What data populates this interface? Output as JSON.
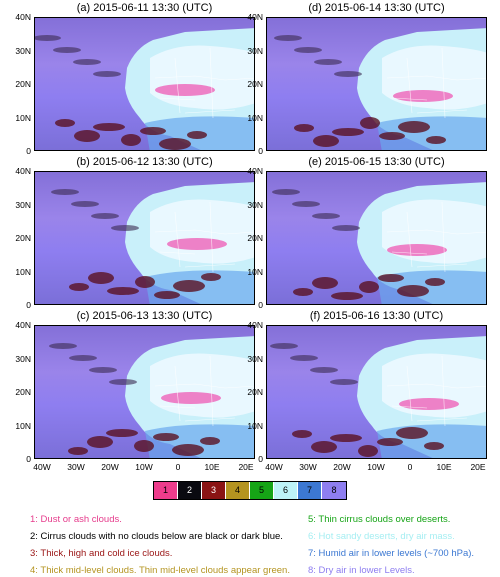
{
  "panels": [
    {
      "title": "(a) 2015-06-11 13:30 (UTC)"
    },
    {
      "title": "(d) 2015-06-14 13:30 (UTC)"
    },
    {
      "title": "(b) 2015-06-12 13:30 (UTC)"
    },
    {
      "title": "(e) 2015-06-15 13:30 (UTC)"
    },
    {
      "title": "(c) 2015-06-13 13:30 (UTC)"
    },
    {
      "title": "(f) 2015-06-16 13:30 (UTC)"
    }
  ],
  "lat_ticks": [
    "40N",
    "30N",
    "20N",
    "10N",
    "0"
  ],
  "lon_ticks": [
    "40W",
    "30W",
    "20W",
    "10W",
    "0",
    "10E",
    "20E"
  ],
  "colorbar": [
    {
      "label": "1",
      "color": "#ee3c8c"
    },
    {
      "label": "2",
      "color": "#0a0a10"
    },
    {
      "label": "3",
      "color": "#8a1414"
    },
    {
      "label": "4",
      "color": "#b49420"
    },
    {
      "label": "5",
      "color": "#16a416"
    },
    {
      "label": "6",
      "color": "#bdf3f7"
    },
    {
      "label": "7",
      "color": "#3c78d2"
    },
    {
      "label": "8",
      "color": "#8e7ef0"
    }
  ],
  "legend": [
    {
      "text": "1: Dust or ash clouds.",
      "color": "#e63c8c"
    },
    {
      "text": "2: Cirrus clouds with no clouds below are black or dark blue.",
      "color": "#000000"
    },
    {
      "text": "3: Thick, high and cold ice clouds.",
      "color": "#9a1414"
    },
    {
      "text": "4: Thick mid-level clouds. Thin mid-level clouds appear green.",
      "color": "#b49420"
    },
    {
      "text": "5: Thin cirrus clouds over deserts.",
      "color": "#16a416"
    },
    {
      "text": "6: Hot sandy deserts, dry air mass.",
      "color": "#a6eef2"
    },
    {
      "text": "7: Humid air in lower levels (~700 hPa).",
      "color": "#3c78d2"
    },
    {
      "text": "8: Dry air in lower Levels.",
      "color": "#8e7ef0"
    }
  ]
}
